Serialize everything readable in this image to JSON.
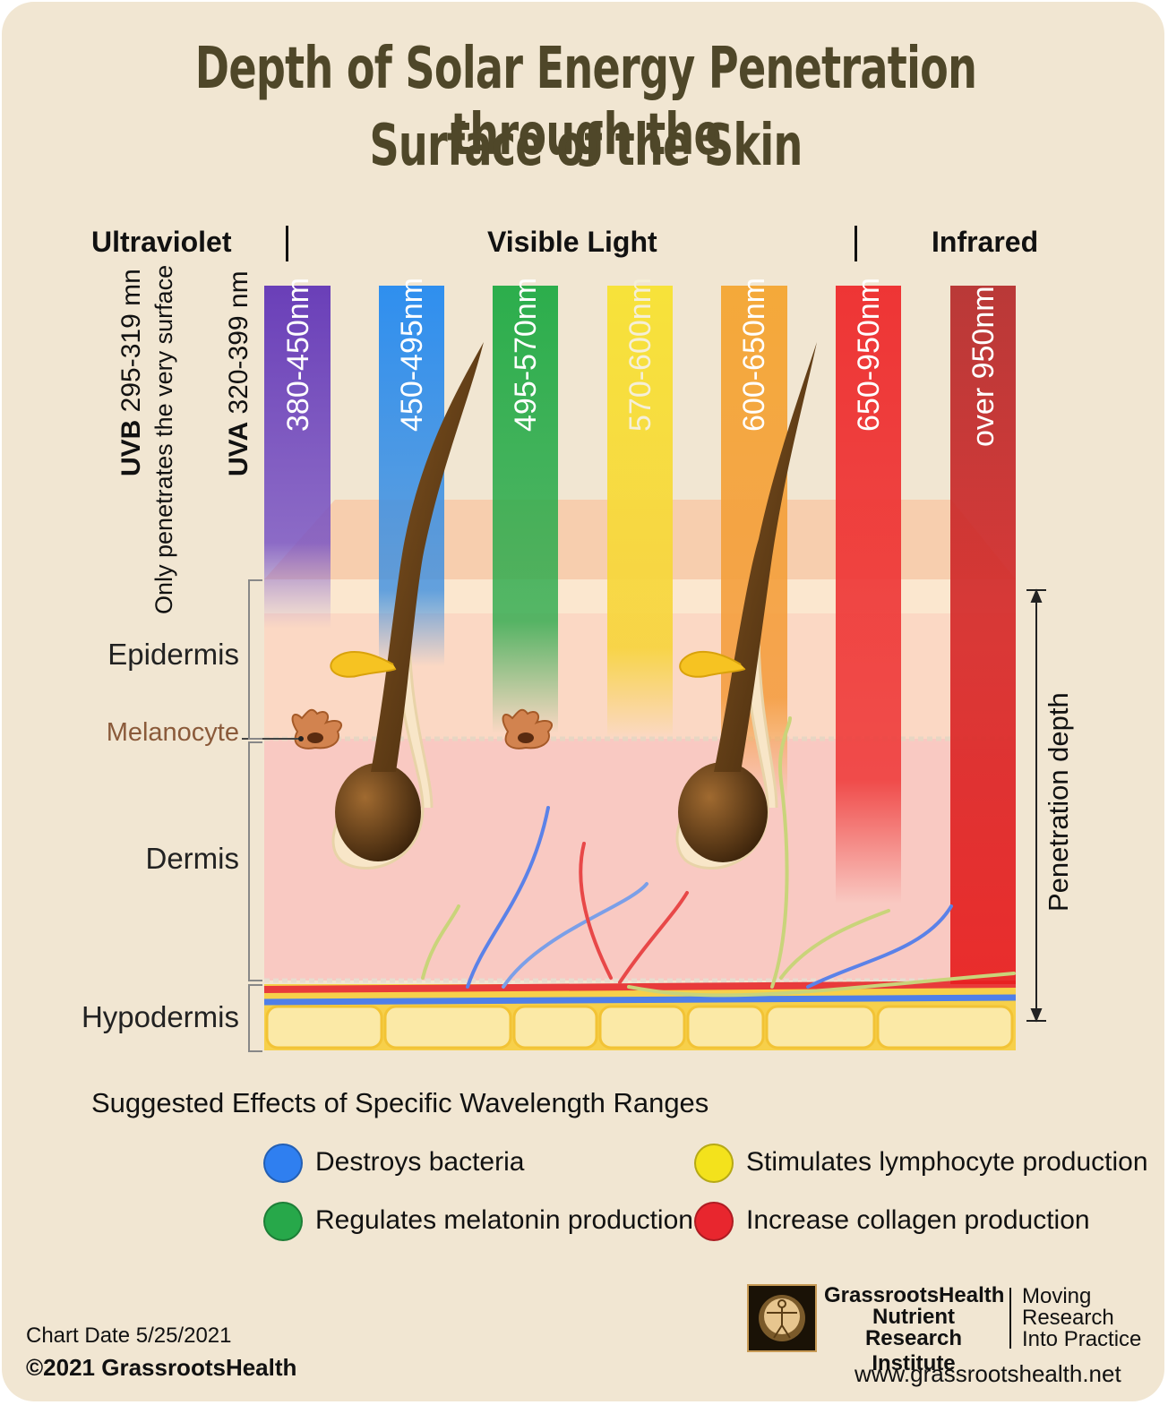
{
  "title": {
    "line1": "Depth of Solar Energy Penetration through the",
    "line2": "Surface of the Skin"
  },
  "categories": {
    "ultraviolet": "Ultraviolet",
    "visible": "Visible Light",
    "infrared": "Infrared"
  },
  "uv": {
    "uvb_label": "UVB",
    "uvb_range": "295-319 mn",
    "uvb_note": "Only penetrates the very surface",
    "uva_label": "UVA",
    "uva_range": "320-399 nm"
  },
  "bands": [
    {
      "label": "380-450nm",
      "color": "#6a3fb8"
    },
    {
      "label": "450-495nm",
      "color": "#2f8fef"
    },
    {
      "label": "495-570nm",
      "color": "#2cae4c"
    },
    {
      "label": "570-600nm",
      "color": "#f7e23a"
    },
    {
      "label": "600-650nm",
      "color": "#f4a93a"
    },
    {
      "label": "650-950nm",
      "color": "#ee3535"
    },
    {
      "label": "over  950nm",
      "color": "#c22a2a"
    }
  ],
  "layers": {
    "epidermis": "Epidermis",
    "melanocyte": "Melanocyte",
    "dermis": "Dermis",
    "hypodermis": "Hypodermis"
  },
  "penetration_label": "Penetration depth",
  "legend": {
    "title": "Suggested Effects of Specific Wavelength Ranges",
    "items": [
      {
        "text": "Destroys bacteria",
        "color": "#2f7ff0"
      },
      {
        "text": "Stimulates lymphocyte production",
        "color": "#f3e21c"
      },
      {
        "text": "Regulates melatonin production",
        "color": "#27a84a"
      },
      {
        "text": "Increase collagen production",
        "color": "#e8262e"
      }
    ]
  },
  "footer": {
    "chart_date": "Chart Date 5/25/2021",
    "copyright": "©2021 GrassrootsHealth",
    "org_line1": "GrassrootsHealth",
    "org_line2": "Nutrient",
    "org_line3": "Research Institute",
    "tag_line1": "Moving",
    "tag_line2": "Research",
    "tag_line3": "Into Practice",
    "website": "www.grassrootshealth.net"
  }
}
